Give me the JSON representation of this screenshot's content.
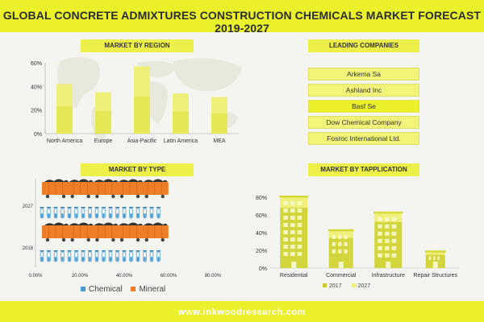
{
  "title": "GLOBAL CONCRETE ADMIXTURES CONSTRUCTION CHEMICALS MARKET FORECAST 2019-2027",
  "footer": "www.inkwoodresearch.com",
  "sections": {
    "region": "MARKET BY REGION",
    "companies": "LEADING COMPANIES",
    "type": "MARKET BY TYPE",
    "application": "MARKET BY TAPPLICATION"
  },
  "companies": [
    "Arkema Sa",
    "Ashland Inc",
    "Basf Se",
    "Dow Chemical Company",
    "Fosroc International Ltd."
  ],
  "colors": {
    "band": "#eaf02a",
    "bar_light": "#eef07a",
    "bar_dark": "#dde235",
    "chemical": "#4a9bd1",
    "mineral": "#ee7d27",
    "app_2017": "#c9cc2a",
    "app_2027": "#eef07a"
  },
  "chart_data": [
    {
      "type": "bar",
      "title": "MARKET BY REGION",
      "categories": [
        "North America",
        "Europe",
        "Asia-Pacific",
        "Latin America",
        "MEA"
      ],
      "values": [
        42,
        35,
        57,
        34,
        31
      ],
      "ylim": [
        0,
        60
      ],
      "yticks": [
        "0%",
        "20%",
        "40%",
        "60%"
      ]
    },
    {
      "type": "bar",
      "title": "MARKET BY TYPE",
      "orientation": "horizontal",
      "categories": [
        "2027",
        "2018"
      ],
      "series": [
        {
          "name": "Chemical",
          "values": [
            54,
            54
          ]
        },
        {
          "name": "Mineral",
          "values": [
            57,
            57
          ]
        }
      ],
      "xlim": [
        0,
        80
      ],
      "xticks": [
        "0.00%",
        "20.00%",
        "40.00%",
        "60.00%",
        "80.00%"
      ]
    },
    {
      "type": "bar",
      "title": "MARKET BY TAPPLICATION",
      "categories": [
        "Residential",
        "Commercial",
        "Infrastructure",
        "Repair Structures"
      ],
      "series": [
        {
          "name": "2017",
          "values": [
            68,
            34,
            52,
            15
          ]
        },
        {
          "name": "2027",
          "values": [
            80,
            42,
            62,
            18
          ]
        }
      ],
      "ylim": [
        0,
        80
      ],
      "yticks": [
        "0%",
        "20%",
        "40%",
        "60%",
        "80%"
      ]
    }
  ]
}
